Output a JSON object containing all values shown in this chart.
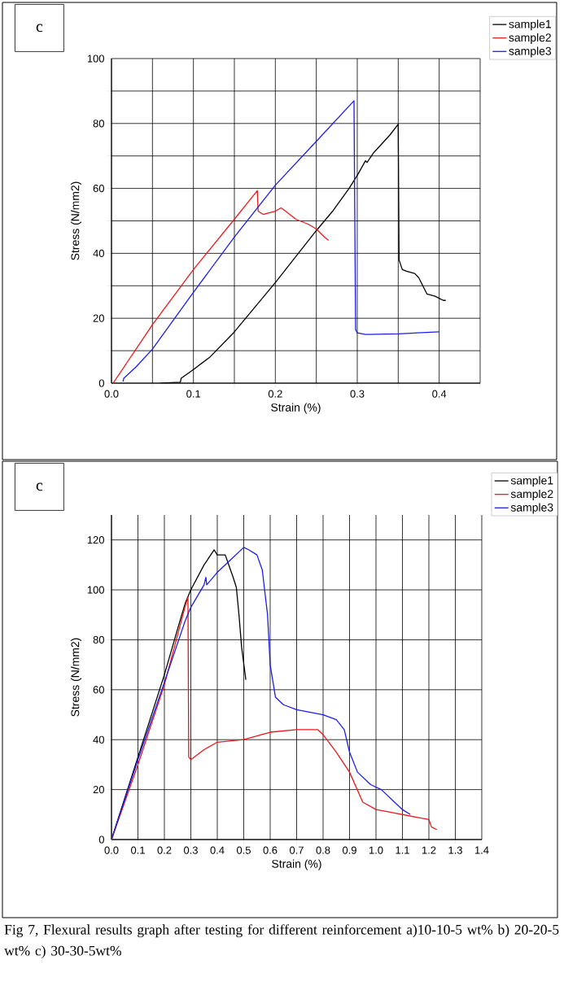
{
  "chart_data": [
    {
      "type": "line",
      "xlabel": "Strain (%)",
      "ylabel": "Stress (N/mm2)",
      "annotations": [
        "c"
      ],
      "xlim": [
        0,
        0.45
      ],
      "ylim": [
        0,
        100
      ],
      "xticks": [
        {
          "value": 0,
          "label": "0.0"
        },
        {
          "value": 0.05,
          "label": null
        },
        {
          "value": 0.1,
          "label": "0.1"
        },
        {
          "value": 0.15,
          "label": null
        },
        {
          "value": 0.2,
          "label": "0.2"
        },
        {
          "value": 0.25,
          "label": null
        },
        {
          "value": 0.3,
          "label": "0.3"
        },
        {
          "value": 0.35,
          "label": null
        },
        {
          "value": 0.4,
          "label": "0.4"
        },
        {
          "value": 0.45,
          "label": null
        }
      ],
      "yticks": [
        0,
        {
          "value": 10,
          "label": null
        },
        20,
        {
          "value": 30,
          "label": null
        },
        40,
        {
          "value": 50,
          "label": null
        },
        60,
        {
          "value": 70,
          "label": null
        },
        80,
        {
          "value": 90,
          "label": null
        },
        100
      ],
      "grid": true,
      "legend": "top right",
      "series": [
        {
          "name": "sample1",
          "color": "#000000",
          "x": [
            0.06,
            0.084,
            0.085,
            0.1,
            0.12,
            0.15,
            0.2,
            0.25,
            0.27,
            0.29,
            0.3,
            0.31,
            0.312,
            0.32,
            0.34,
            0.35,
            0.351,
            0.355,
            0.36,
            0.37,
            0.375,
            0.38,
            0.385,
            0.395,
            0.405,
            0.408
          ],
          "values": [
            0,
            0.3,
            1.5,
            4.2,
            8,
            15.8,
            31,
            47,
            53,
            60,
            64,
            68.5,
            68,
            71,
            76.5,
            79.8,
            38,
            35,
            34.5,
            33.8,
            32.5,
            30,
            27.5,
            26.8,
            25.5,
            25.5
          ]
        },
        {
          "name": "sample2",
          "color": "#e8191c",
          "x": [
            0.002,
            0.05,
            0.1,
            0.15,
            0.178,
            0.179,
            0.185,
            0.2,
            0.207,
            0.215,
            0.225,
            0.24,
            0.25,
            0.26,
            0.265
          ],
          "values": [
            0,
            18,
            35,
            50.5,
            59.3,
            53,
            52,
            53,
            54,
            52.5,
            50.5,
            49,
            47.5,
            45,
            44
          ]
        },
        {
          "name": "sample3",
          "color": "#1c1ce8",
          "x": [
            0.014,
            0.015,
            0.03,
            0.05,
            0.1,
            0.15,
            0.2,
            0.25,
            0.296,
            0.297,
            0.298,
            0.3,
            0.31,
            0.35,
            0.4
          ],
          "values": [
            0.5,
            1.5,
            5,
            10.5,
            28,
            45,
            61,
            74.5,
            87,
            50,
            16.5,
            15.5,
            15,
            15.2,
            15.8
          ]
        }
      ]
    },
    {
      "type": "line",
      "xlabel": "Strain (%)",
      "ylabel": "Stress (N/mm2)",
      "annotations": [
        "c",
        "Fig 7, Flexural results graph after testing for different reinforcement  a)10-10-5 wt%  b) 20-20-5 wt%  c) 30-30-5wt%"
      ],
      "xlim": [
        0,
        1.4
      ],
      "ylim": [
        0,
        130
      ],
      "xticks": [
        {
          "value": 0,
          "label": "0.0"
        },
        {
          "value": 0.1,
          "label": "0.1"
        },
        {
          "value": 0.2,
          "label": "0.2"
        },
        {
          "value": 0.3,
          "label": "0.3"
        },
        {
          "value": 0.4,
          "label": "0.4"
        },
        {
          "value": 0.5,
          "label": "0.5"
        },
        {
          "value": 0.6,
          "label": "0.6"
        },
        {
          "value": 0.7,
          "label": "0.7"
        },
        {
          "value": 0.8,
          "label": "0.8"
        },
        {
          "value": 0.9,
          "label": "0.9"
        },
        {
          "value": 1,
          "label": "1.0"
        },
        {
          "value": 1.1,
          "label": "1.1"
        },
        {
          "value": 1.2,
          "label": "1.2"
        },
        {
          "value": 1.3,
          "label": "1.3"
        },
        {
          "value": 1.4,
          "label": "1.4"
        }
      ],
      "yticks": [
        0,
        20,
        40,
        60,
        80,
        100,
        120
      ],
      "grid": true,
      "legend": "top right",
      "series": [
        {
          "name": "sample1",
          "color": "#000000",
          "x": [
            0,
            0.1,
            0.2,
            0.26,
            0.28,
            0.3,
            0.35,
            0.388,
            0.4,
            0.42,
            0.43,
            0.44,
            0.46,
            0.472,
            0.482,
            0.492,
            0.508
          ],
          "values": [
            0,
            33,
            66,
            88,
            95,
            100,
            110,
            116,
            114,
            114,
            114,
            111,
            105,
            101,
            90,
            77,
            64
          ]
        },
        {
          "name": "sample2",
          "color": "#e8191c",
          "x": [
            0,
            0.1,
            0.2,
            0.28,
            0.289,
            0.292,
            0.3,
            0.35,
            0.4,
            0.5,
            0.6,
            0.7,
            0.78,
            0.8,
            0.85,
            0.9,
            0.95,
            1.0,
            1.05,
            1.1,
            1.2,
            1.21,
            1.23
          ],
          "values": [
            0,
            30,
            62,
            94,
            97,
            33,
            32,
            36,
            39,
            40,
            43,
            44,
            44,
            42,
            35,
            27,
            15,
            12,
            11,
            10,
            8,
            5,
            4
          ]
        },
        {
          "name": "sample3",
          "color": "#1c1ce8",
          "x": [
            0,
            0.1,
            0.2,
            0.28,
            0.3,
            0.35,
            0.357,
            0.36,
            0.4,
            0.45,
            0.5,
            0.52,
            0.55,
            0.57,
            0.59,
            0.6,
            0.62,
            0.65,
            0.7,
            0.75,
            0.8,
            0.85,
            0.88,
            0.9,
            0.93,
            0.98,
            1.02,
            1.06,
            1.1,
            1.13
          ],
          "values": [
            0,
            32,
            63,
            88,
            93,
            102,
            105,
            102,
            107,
            112,
            117,
            116,
            114,
            108,
            90,
            70,
            57,
            54,
            52,
            51,
            50,
            48,
            44,
            35,
            27,
            22,
            20,
            16,
            12,
            10
          ]
        }
      ]
    }
  ]
}
